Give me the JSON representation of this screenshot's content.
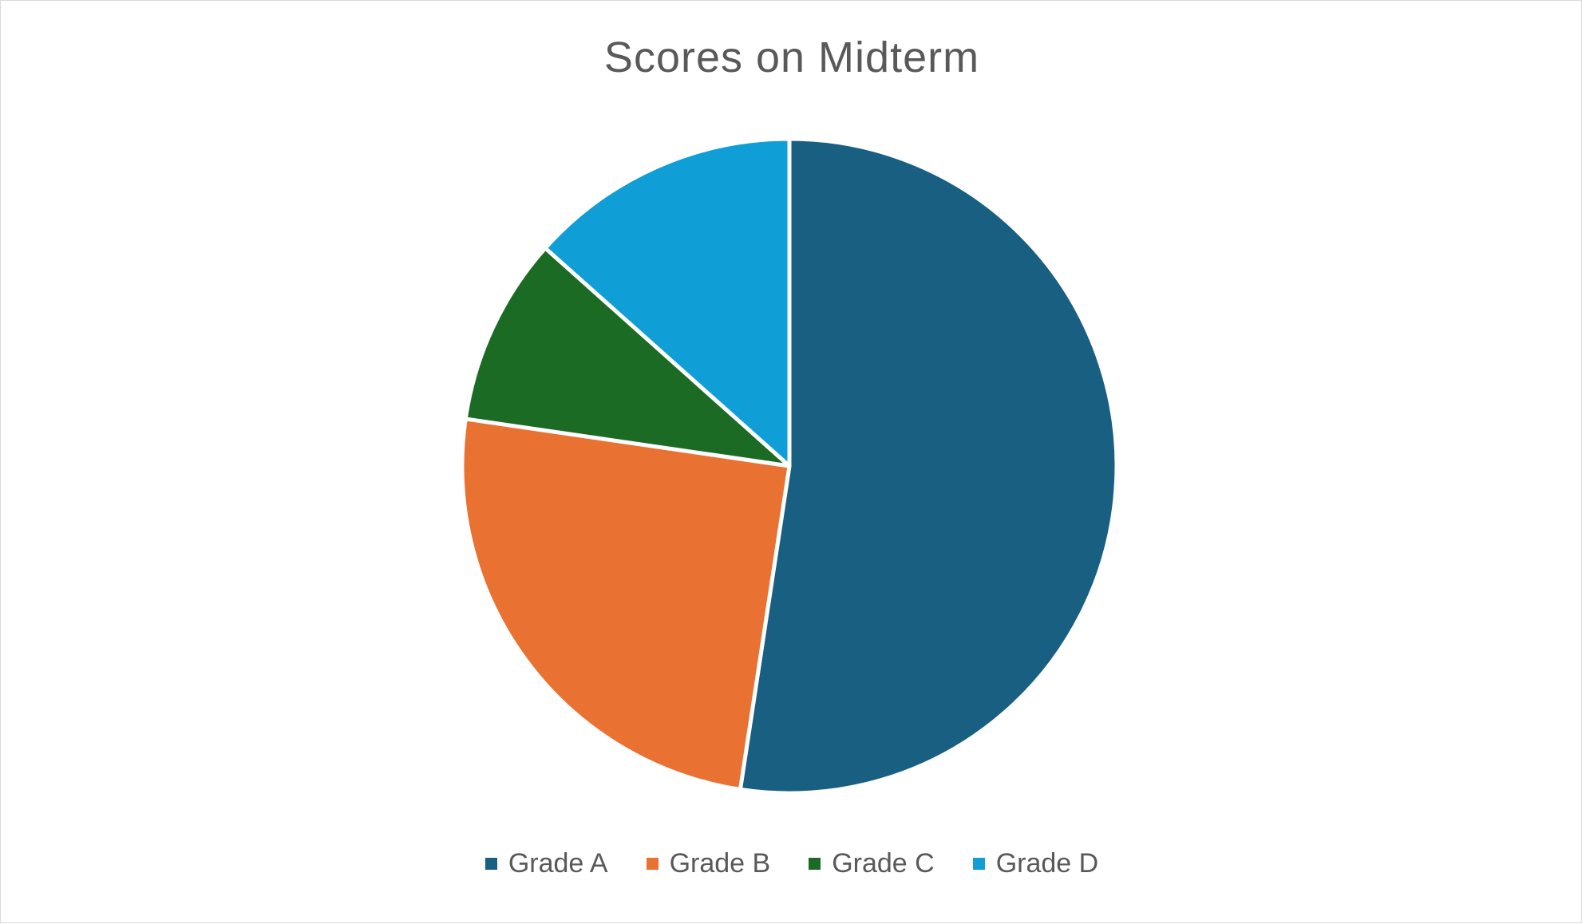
{
  "chart_data": {
    "type": "pie",
    "title": "Scores on Midterm",
    "categories": [
      "Grade A",
      "Grade B",
      "Grade C",
      "Grade D"
    ],
    "values": [
      52.4,
      24.9,
      9.3,
      13.4
    ],
    "colors": [
      "#185f82",
      "#e97132",
      "#1b6b25",
      "#0f9ed5"
    ],
    "start_angle_deg": 0,
    "direction": "clockwise",
    "legend_position": "bottom"
  }
}
